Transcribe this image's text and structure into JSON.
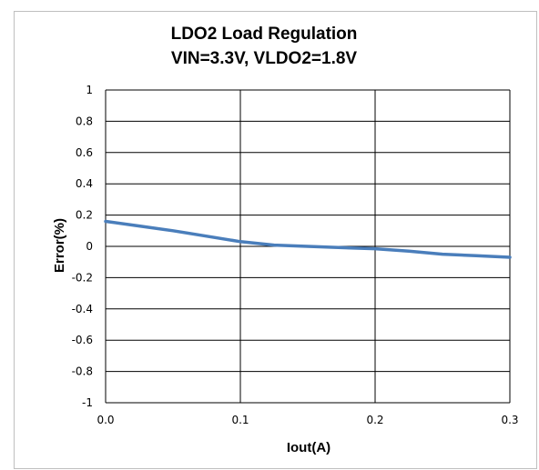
{
  "chart_data": {
    "type": "line",
    "title": "LDO2 Load Regulation",
    "subtitle": "VIN=3.3V, VLDO2=1.8V",
    "xlabel": "Iout(A)",
    "ylabel": "Error(%)",
    "xlim": [
      0,
      0.3
    ],
    "ylim": [
      -1,
      1
    ],
    "x_ticks": [
      "0.0",
      "0.1",
      "0.2",
      "0.3"
    ],
    "y_ticks": [
      "1",
      "0.8",
      "0.6",
      "0.4",
      "0.2",
      "0",
      "-0.2",
      "-0.4",
      "-0.6",
      "-0.8",
      "-1"
    ],
    "grid": "major horizontal and vertical",
    "legend": "none",
    "series": [
      {
        "color": "#4a7ebb",
        "x": [
          0.0,
          0.025,
          0.05,
          0.075,
          0.1,
          0.125,
          0.15,
          0.175,
          0.2,
          0.225,
          0.25,
          0.275,
          0.3
        ],
        "y": [
          0.16,
          0.13,
          0.1,
          0.065,
          0.03,
          0.008,
          0.0,
          -0.008,
          -0.015,
          -0.03,
          -0.05,
          -0.06,
          -0.07
        ]
      }
    ]
  }
}
